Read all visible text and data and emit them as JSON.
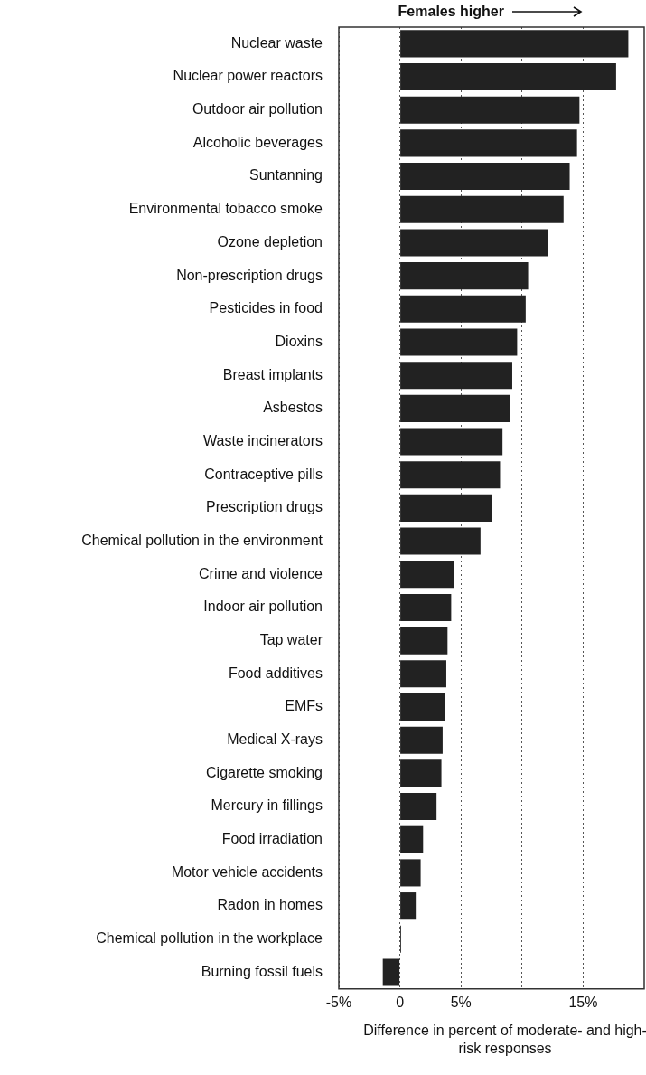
{
  "chart_data": {
    "type": "bar",
    "orientation": "horizontal",
    "xlabel": "Difference in percent of moderate- and high-risk responses",
    "annotations": [
      "Females higher"
    ],
    "categories": [
      "Nuclear waste",
      "Nuclear power reactors",
      "Outdoor air pollution",
      "Alcoholic beverages",
      "Suntanning",
      "Environmental tobacco smoke",
      "Ozone depletion",
      "Non-prescription drugs",
      "Pesticides in food",
      "Dioxins",
      "Breast implants",
      "Asbestos",
      "Waste incinerators",
      "Contraceptive pills",
      "Prescription drugs",
      "Chemical pollution in the environment",
      "Crime and violence",
      "Indoor air pollution",
      "Tap water",
      "Food additives",
      "EMFs",
      "Medical X-rays",
      "Cigarette smoking",
      "Mercury in fillings",
      "Food irradiation",
      "Motor vehicle accidents",
      "Radon in homes",
      "Chemical pollution in the workplace",
      "Burning fossil fuels"
    ],
    "values": [
      18.7,
      17.7,
      14.7,
      14.5,
      13.9,
      13.4,
      12.1,
      10.5,
      10.3,
      9.6,
      9.2,
      9.0,
      8.4,
      8.2,
      7.5,
      6.6,
      4.4,
      4.2,
      3.9,
      3.8,
      3.7,
      3.5,
      3.4,
      3.0,
      1.9,
      1.7,
      1.3,
      0.1,
      -1.4
    ],
    "color": "#222222",
    "xlim": [
      -5,
      20
    ],
    "xticks": [
      {
        "value": -5,
        "label": "-5%"
      },
      {
        "value": 0,
        "label": "0"
      },
      {
        "value": 5,
        "label": "5%"
      },
      {
        "value": 10,
        "label": null
      },
      {
        "value": 15,
        "label": "15%"
      }
    ],
    "grid": "x",
    "line_style": "dotted",
    "legend": false
  }
}
